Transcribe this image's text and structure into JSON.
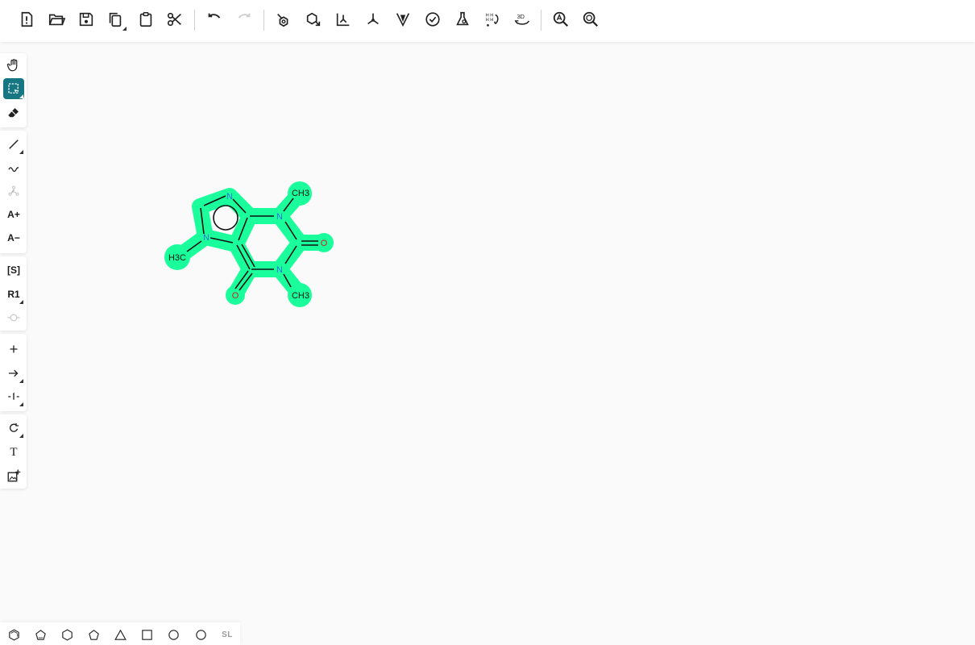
{
  "toolbar": {
    "items": [
      {
        "name": "new-file-button",
        "icon": "new-file-icon"
      },
      {
        "name": "open-button",
        "icon": "folder-open-icon"
      },
      {
        "name": "save-button",
        "icon": "floppy-icon"
      },
      {
        "name": "copy-button",
        "icon": "copy-icon"
      },
      {
        "name": "paste-button",
        "icon": "clipboard-icon"
      },
      {
        "name": "cut-button",
        "icon": "scissors-icon"
      },
      {
        "name": "undo-button",
        "icon": "undo-icon"
      },
      {
        "name": "redo-button",
        "icon": "redo-icon"
      },
      {
        "name": "layout-button",
        "icon": "layout-icon"
      },
      {
        "name": "clean-up-button",
        "icon": "clean-up-icon"
      },
      {
        "name": "aromatize-button",
        "icon": "aromatize-icon"
      },
      {
        "name": "dearomatize-button",
        "icon": "dearomatize-icon"
      },
      {
        "name": "calculate-cip-button",
        "icon": "cip-icon"
      },
      {
        "name": "check-structure-button",
        "icon": "check-icon"
      },
      {
        "name": "calculated-values-button",
        "icon": "flask-icon"
      },
      {
        "name": "explicit-hydrogens-button",
        "icon": "hydrogens-icon"
      },
      {
        "name": "3d-viewer-button",
        "icon": "3d-icon"
      },
      {
        "name": "zoom-in-button",
        "icon": "zoom-in-icon"
      },
      {
        "name": "zoom-out-button",
        "icon": "zoom-out-icon"
      }
    ],
    "hydrogen_label": "H",
    "three_d_label": "3D"
  },
  "left_toolbar": {
    "groups": [
      [
        "hand-tool",
        "select-tool",
        "erase-tool"
      ],
      [
        "bond-tool",
        "chain-tool",
        "stereo-tool",
        "charge-plus-tool",
        "charge-minus-tool"
      ],
      [
        "sgroup-tool",
        "rgroup-tool",
        "attachment-tool"
      ],
      [
        "plus-tool",
        "arrow-tool",
        "mapping-tool"
      ],
      [
        "rotate-tool",
        "text-tool",
        "image-tool"
      ]
    ],
    "active": "select-tool",
    "labels": {
      "sgroup": "[S]",
      "rgroup": "R1",
      "text": "T",
      "charge_plus": "A+",
      "charge_minus": "A−"
    }
  },
  "molecule": {
    "name": "",
    "atoms": {
      "n_imidazole_top": "N",
      "n_imidazole_left": "N",
      "n1": "N",
      "n3": "N",
      "o_carbonyl_right": "O",
      "o_carbonyl_bottom": "O",
      "methyl_top": "CH3",
      "methyl_bottom": "CH3",
      "methyl_left": "H3C"
    },
    "highlight_color": "#1aff9c",
    "nitrogen_color": "#2f6fdd",
    "oxygen_color": "#d21e1e"
  },
  "bottom_bar": {
    "templates": [
      "benzene-template",
      "cyclopentadiene-template",
      "cyclohexane-template",
      "cyclopentane-template",
      "cyclopropane-template",
      "cyclobutane-template",
      "cycloheptane-template",
      "cyclooctane-template"
    ],
    "sl_label": "SL"
  }
}
